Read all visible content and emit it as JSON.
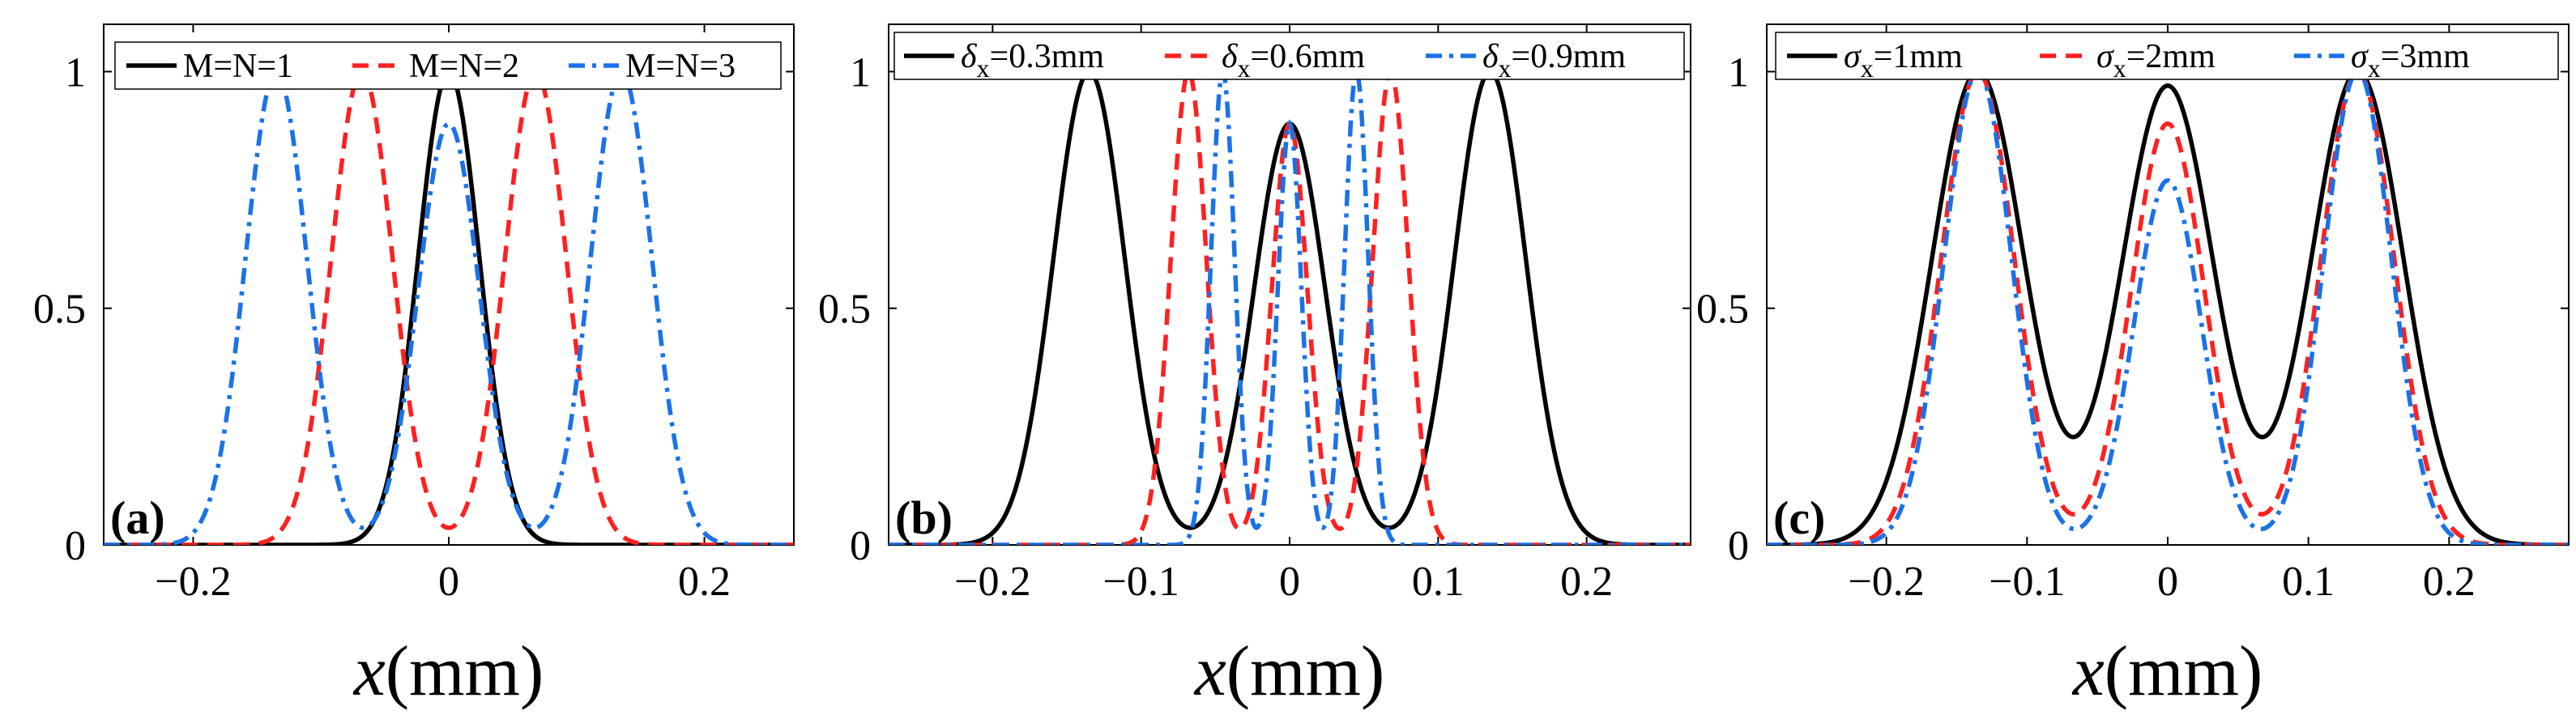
{
  "chart_data": [
    {
      "type": "line",
      "panel_label": "(a)",
      "xlabel": {
        "italic": "x",
        "unit": "(mm)"
      },
      "ylabel": "",
      "xlim": [
        -0.27,
        0.27
      ],
      "ylim": [
        0,
        1.1
      ],
      "xticks": [
        -0.2,
        0,
        0.2
      ],
      "xtick_labels": [
        "−0.2",
        "0",
        "0.2"
      ],
      "yticks": [
        0,
        0.5,
        1
      ],
      "ytick_labels": [
        "0",
        "0.5",
        "1"
      ],
      "legend_position": "top",
      "series": [
        {
          "name": "M=N=1",
          "legend_text": "M=N=1",
          "color": "#000000",
          "dash": "solid",
          "centers": [
            0
          ],
          "amplitudes": [
            1.0
          ],
          "width": 0.024
        },
        {
          "name": "M=N=2",
          "legend_text": "M=N=2",
          "color": "#ff2020",
          "dash": "dashed",
          "centers": [
            -0.068,
            0.068
          ],
          "amplitudes": [
            1.0,
            1.0
          ],
          "width": 0.024
        },
        {
          "name": "M=N=3",
          "legend_text": "M=N=3",
          "color": "#1a72e8",
          "dash": "dashdot",
          "centers": [
            -0.135,
            0,
            0.135
          ],
          "amplitudes": [
            1.0,
            0.89,
            1.0
          ],
          "width": 0.024
        }
      ]
    },
    {
      "type": "line",
      "panel_label": "(b)",
      "xlabel": {
        "italic": "x",
        "unit": "(mm)"
      },
      "ylabel": "",
      "xlim": [
        -0.27,
        0.27
      ],
      "ylim": [
        0,
        1.1
      ],
      "xticks": [
        -0.2,
        -0.1,
        0,
        0.1,
        0.2
      ],
      "xtick_labels": [
        "−0.2",
        "−0.1",
        "0",
        "0.1",
        "0.2"
      ],
      "yticks": [
        0,
        0.5,
        1
      ],
      "ytick_labels": [
        "0",
        "0.5",
        "1"
      ],
      "legend_position": "top",
      "series": [
        {
          "name": "δx=0.3mm",
          "legend_symbol": "δ",
          "legend_sub": "x",
          "legend_rest": "=0.3mm",
          "color": "#000000",
          "dash": "solid",
          "centers": [
            -0.135,
            0,
            0.135
          ],
          "amplitudes": [
            1.0,
            0.89,
            1.0
          ],
          "width": 0.024
        },
        {
          "name": "δx=0.6mm",
          "legend_symbol": "δ",
          "legend_sub": "x",
          "legend_rest": "=0.6mm",
          "color": "#ff2020",
          "dash": "dashed",
          "centers": [
            -0.068,
            0,
            0.068
          ],
          "amplitudes": [
            1.0,
            0.89,
            1.0
          ],
          "width": 0.012
        },
        {
          "name": "δx=0.9mm",
          "legend_symbol": "δ",
          "legend_sub": "x",
          "legend_rest": "=0.9mm",
          "color": "#1a72e8",
          "dash": "dashdot",
          "centers": [
            -0.045,
            0,
            0.045
          ],
          "amplitudes": [
            1.0,
            0.89,
            1.0
          ],
          "width": 0.008
        }
      ]
    },
    {
      "type": "line",
      "panel_label": "(c)",
      "xlabel": {
        "italic": "x",
        "unit": "(mm)"
      },
      "ylabel": "",
      "xlim": [
        -0.285,
        0.285
      ],
      "ylim": [
        0,
        1.1
      ],
      "xticks": [
        -0.2,
        -0.1,
        0,
        0.1,
        0.2
      ],
      "xtick_labels": [
        "−0.2",
        "−0.1",
        "0",
        "0.1",
        "0.2"
      ],
      "yticks": [
        0,
        0.5,
        1
      ],
      "ytick_labels": [
        "0",
        "0.5",
        "1"
      ],
      "legend_position": "top",
      "series": [
        {
          "name": "σx=1mm",
          "legend_symbol": "σ",
          "legend_sub": "x",
          "legend_rest": "=1mm",
          "color": "#000000",
          "dash": "solid",
          "centers": [
            -0.135,
            0,
            0.135
          ],
          "amplitudes": [
            1.0,
            0.97,
            1.0
          ],
          "width": 0.0325
        },
        {
          "name": "σx=2mm",
          "legend_symbol": "σ",
          "legend_sub": "x",
          "legend_rest": "=2mm",
          "color": "#ff2020",
          "dash": "dashed",
          "centers": [
            -0.135,
            0,
            0.135
          ],
          "amplitudes": [
            1.0,
            0.89,
            1.0
          ],
          "width": 0.026
        },
        {
          "name": "σx=3mm",
          "legend_symbol": "σ",
          "legend_sub": "x",
          "legend_rest": "=3mm",
          "color": "#1a72e8",
          "dash": "dashdot",
          "centers": [
            -0.135,
            0,
            0.135
          ],
          "amplitudes": [
            1.0,
            0.77,
            1.0
          ],
          "width": 0.024
        }
      ]
    }
  ]
}
